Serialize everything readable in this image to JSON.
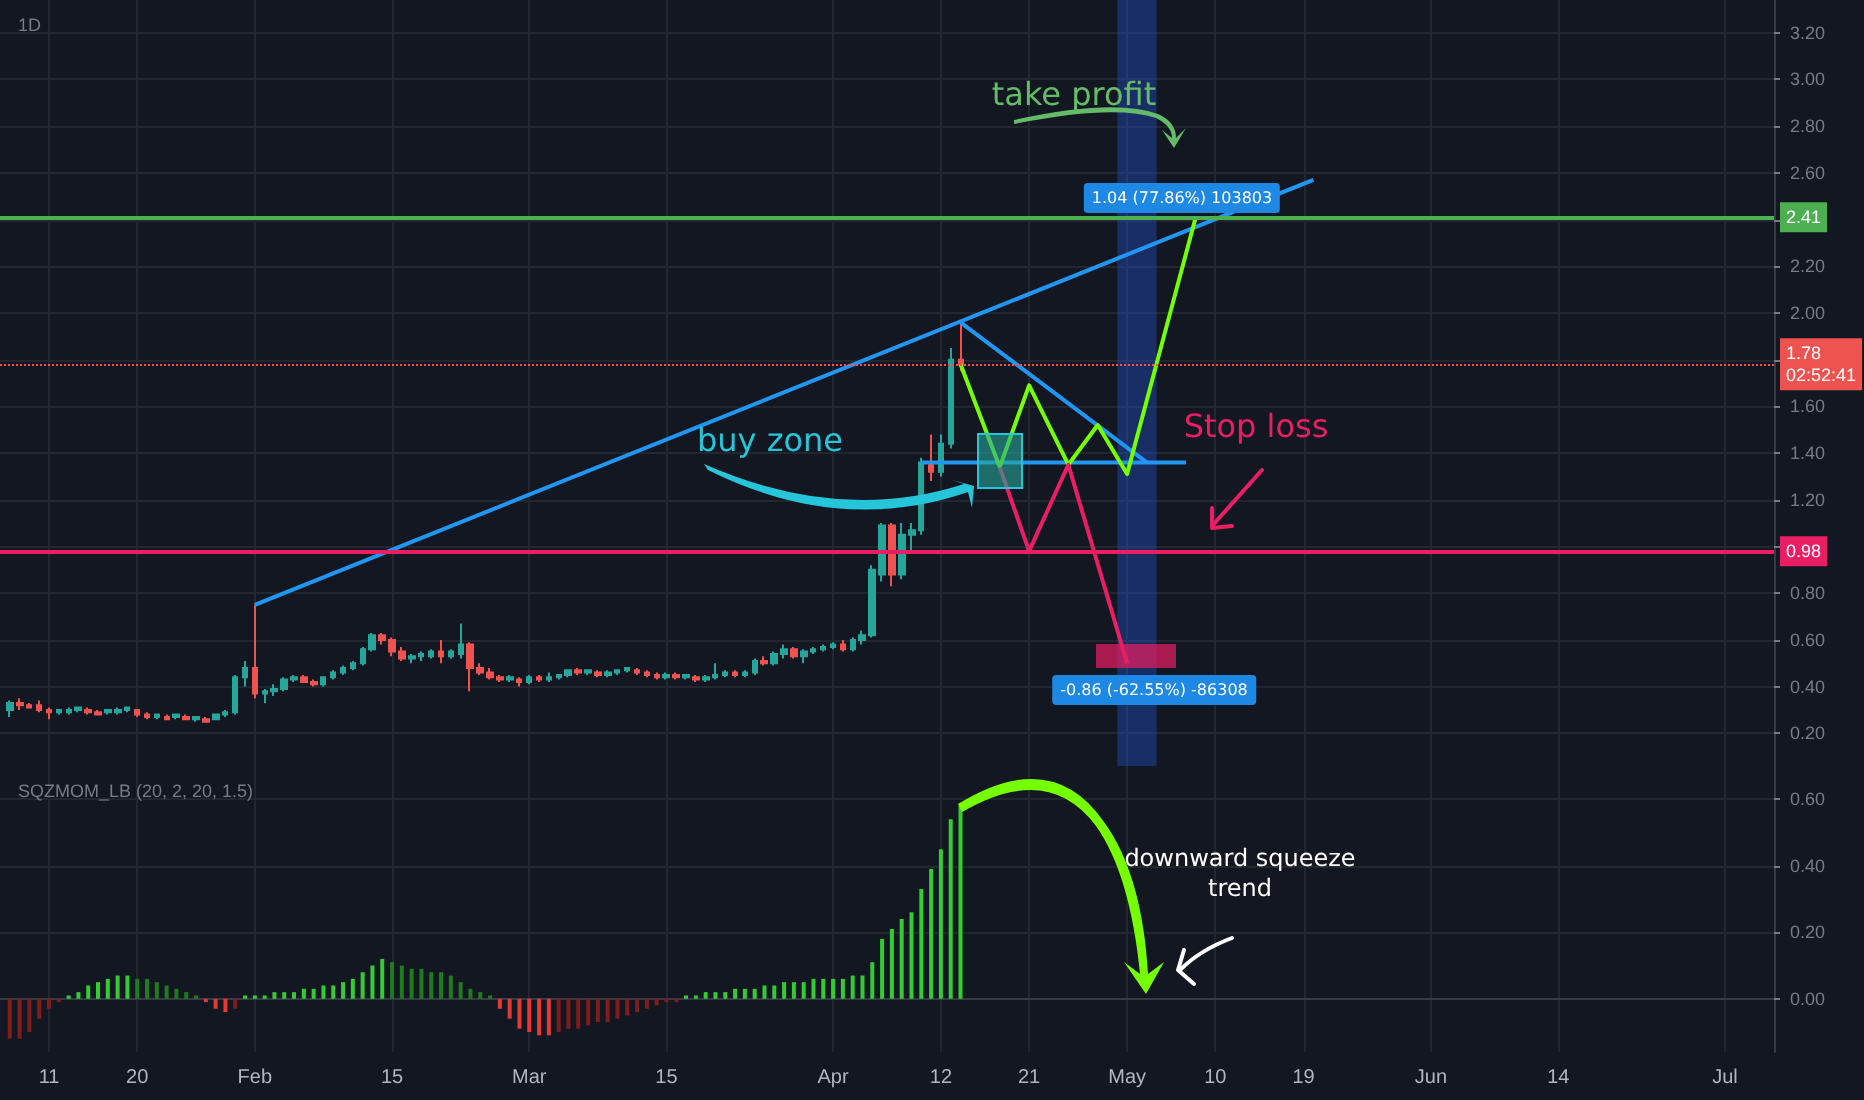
{
  "chart_data": [
    {
      "type": "candlestick",
      "title": "1D",
      "x": [
        "--01-07",
        "--01-08",
        "--01-09",
        "--01-10",
        "--01-11",
        "--01-12",
        "--01-13",
        "--01-14",
        "--01-15",
        "--01-16",
        "--01-17",
        "--01-18",
        "--01-19",
        "--01-20",
        "--01-21",
        "--01-22",
        "--01-23",
        "--01-24",
        "--01-25",
        "--01-26",
        "--01-27",
        "--01-28",
        "--01-29",
        "--01-30",
        "--01-31",
        "--02-01",
        "--02-02",
        "--02-03",
        "--02-04",
        "--02-05",
        "--02-06",
        "--02-07",
        "--02-08",
        "--02-09",
        "--02-10",
        "--02-11",
        "--02-12",
        "--02-13",
        "--02-14",
        "--02-15",
        "--02-16",
        "--02-17",
        "--02-18",
        "--02-19",
        "--02-20",
        "--02-21",
        "--02-22",
        "--02-23",
        "--02-24",
        "--02-25",
        "--02-26",
        "--02-27",
        "--02-28",
        "--03-01",
        "--03-02",
        "--03-03",
        "--03-04",
        "--03-05",
        "--03-06",
        "--03-07",
        "--03-08",
        "--03-09",
        "--03-10",
        "--03-11",
        "--03-12",
        "--03-13",
        "--03-14",
        "--03-15",
        "--03-16",
        "--03-17",
        "--03-18",
        "--03-19",
        "--03-20",
        "--03-21",
        "--03-22",
        "--03-23",
        "--03-24",
        "--03-25",
        "--03-26",
        "--03-27",
        "--03-28",
        "--03-29",
        "--03-30",
        "--03-31",
        "--04-01",
        "--04-02",
        "--04-03",
        "--04-04",
        "--04-05",
        "--04-06",
        "--04-07",
        "--04-08",
        "--04-09",
        "--04-10",
        "--04-11",
        "--04-12",
        "--04-13",
        "--04-14"
      ],
      "ohlc": [
        [
          0.3,
          0.34,
          0.27,
          0.33
        ],
        [
          0.33,
          0.35,
          0.3,
          0.32
        ],
        [
          0.32,
          0.33,
          0.31,
          0.31
        ],
        [
          0.32,
          0.34,
          0.29,
          0.3
        ],
        [
          0.3,
          0.31,
          0.26,
          0.29
        ],
        [
          0.29,
          0.3,
          0.28,
          0.3
        ],
        [
          0.29,
          0.31,
          0.28,
          0.3
        ],
        [
          0.3,
          0.31,
          0.29,
          0.31
        ],
        [
          0.3,
          0.31,
          0.28,
          0.29
        ],
        [
          0.29,
          0.3,
          0.28,
          0.28
        ],
        [
          0.29,
          0.3,
          0.28,
          0.3
        ],
        [
          0.29,
          0.31,
          0.28,
          0.3
        ],
        [
          0.3,
          0.31,
          0.29,
          0.31
        ],
        [
          0.3,
          0.3,
          0.27,
          0.28
        ],
        [
          0.28,
          0.29,
          0.26,
          0.27
        ],
        [
          0.27,
          0.28,
          0.26,
          0.28
        ],
        [
          0.27,
          0.28,
          0.26,
          0.26
        ],
        [
          0.27,
          0.28,
          0.26,
          0.28
        ],
        [
          0.27,
          0.28,
          0.26,
          0.26
        ],
        [
          0.26,
          0.27,
          0.25,
          0.27
        ],
        [
          0.26,
          0.27,
          0.25,
          0.25
        ],
        [
          0.26,
          0.28,
          0.26,
          0.28
        ],
        [
          0.28,
          0.3,
          0.27,
          0.29
        ],
        [
          0.29,
          0.45,
          0.28,
          0.44
        ],
        [
          0.44,
          0.51,
          0.4,
          0.48
        ],
        [
          0.48,
          0.75,
          0.35,
          0.37
        ],
        [
          0.37,
          0.39,
          0.33,
          0.38
        ],
        [
          0.38,
          0.41,
          0.36,
          0.39
        ],
        [
          0.39,
          0.44,
          0.38,
          0.43
        ],
        [
          0.43,
          0.45,
          0.42,
          0.44
        ],
        [
          0.44,
          0.45,
          0.42,
          0.42
        ],
        [
          0.42,
          0.43,
          0.4,
          0.41
        ],
        [
          0.41,
          0.44,
          0.4,
          0.44
        ],
        [
          0.44,
          0.47,
          0.43,
          0.46
        ],
        [
          0.46,
          0.49,
          0.45,
          0.48
        ],
        [
          0.48,
          0.51,
          0.47,
          0.5
        ],
        [
          0.5,
          0.57,
          0.49,
          0.56
        ],
        [
          0.56,
          0.63,
          0.55,
          0.62
        ],
        [
          0.62,
          0.63,
          0.58,
          0.6
        ],
        [
          0.6,
          0.61,
          0.53,
          0.55
        ],
        [
          0.55,
          0.57,
          0.51,
          0.52
        ],
        [
          0.52,
          0.54,
          0.5,
          0.53
        ],
        [
          0.53,
          0.55,
          0.51,
          0.54
        ],
        [
          0.53,
          0.56,
          0.52,
          0.55
        ],
        [
          0.55,
          0.6,
          0.5,
          0.53
        ],
        [
          0.53,
          0.56,
          0.52,
          0.55
        ],
        [
          0.54,
          0.67,
          0.52,
          0.58
        ],
        [
          0.58,
          0.59,
          0.38,
          0.48
        ],
        [
          0.48,
          0.5,
          0.45,
          0.46
        ],
        [
          0.46,
          0.48,
          0.43,
          0.44
        ],
        [
          0.44,
          0.45,
          0.42,
          0.43
        ],
        [
          0.43,
          0.45,
          0.42,
          0.44
        ],
        [
          0.43,
          0.44,
          0.4,
          0.42
        ],
        [
          0.42,
          0.45,
          0.41,
          0.44
        ],
        [
          0.44,
          0.45,
          0.42,
          0.43
        ],
        [
          0.43,
          0.46,
          0.42,
          0.44
        ],
        [
          0.44,
          0.45,
          0.43,
          0.45
        ],
        [
          0.45,
          0.47,
          0.44,
          0.47
        ],
        [
          0.47,
          0.48,
          0.45,
          0.46
        ],
        [
          0.46,
          0.47,
          0.45,
          0.47
        ],
        [
          0.46,
          0.47,
          0.44,
          0.45
        ],
        [
          0.45,
          0.47,
          0.44,
          0.46
        ],
        [
          0.46,
          0.47,
          0.45,
          0.47
        ],
        [
          0.47,
          0.48,
          0.46,
          0.48
        ],
        [
          0.47,
          0.48,
          0.45,
          0.46
        ],
        [
          0.46,
          0.47,
          0.44,
          0.45
        ],
        [
          0.45,
          0.46,
          0.43,
          0.44
        ],
        [
          0.44,
          0.46,
          0.43,
          0.45
        ],
        [
          0.45,
          0.46,
          0.43,
          0.44
        ],
        [
          0.44,
          0.45,
          0.43,
          0.45
        ],
        [
          0.44,
          0.45,
          0.42,
          0.43
        ],
        [
          0.43,
          0.45,
          0.42,
          0.44
        ],
        [
          0.44,
          0.5,
          0.43,
          0.45
        ],
        [
          0.45,
          0.47,
          0.44,
          0.46
        ],
        [
          0.46,
          0.47,
          0.44,
          0.45
        ],
        [
          0.45,
          0.47,
          0.44,
          0.46
        ],
        [
          0.46,
          0.52,
          0.45,
          0.51
        ],
        [
          0.51,
          0.53,
          0.49,
          0.5
        ],
        [
          0.5,
          0.55,
          0.49,
          0.54
        ],
        [
          0.54,
          0.58,
          0.52,
          0.56
        ],
        [
          0.56,
          0.57,
          0.52,
          0.53
        ],
        [
          0.53,
          0.56,
          0.5,
          0.55
        ],
        [
          0.55,
          0.57,
          0.54,
          0.56
        ],
        [
          0.56,
          0.58,
          0.55,
          0.57
        ],
        [
          0.57,
          0.59,
          0.56,
          0.58
        ],
        [
          0.58,
          0.6,
          0.55,
          0.56
        ],
        [
          0.56,
          0.61,
          0.55,
          0.6
        ],
        [
          0.6,
          0.64,
          0.58,
          0.62
        ],
        [
          0.62,
          0.92,
          0.61,
          0.9
        ],
        [
          0.88,
          1.1,
          0.85,
          1.09
        ],
        [
          1.09,
          1.1,
          0.83,
          0.88
        ],
        [
          0.88,
          1.1,
          0.86,
          1.05
        ],
        [
          1.05,
          1.1,
          0.98,
          1.07
        ],
        [
          1.07,
          1.38,
          1.05,
          1.36
        ],
        [
          1.36,
          1.48,
          1.28,
          1.32
        ],
        [
          1.32,
          1.48,
          1.3,
          1.44
        ],
        [
          1.44,
          1.85,
          1.42,
          1.8
        ],
        [
          1.8,
          1.96,
          1.75,
          1.78
        ]
      ],
      "colors": [
        "#26a69a",
        "#ef5350",
        "#ef5350",
        "#ef5350",
        "#ef5350",
        "#26a69a",
        "#26a69a",
        "#26a69a",
        "#ef5350",
        "#ef5350",
        "#26a69a",
        "#26a69a",
        "#26a69a",
        "#ef5350",
        "#ef5350",
        "#26a69a",
        "#ef5350",
        "#26a69a",
        "#ef5350",
        "#26a69a",
        "#ef5350",
        "#26a69a",
        "#26a69a",
        "#26a69a",
        "#26a69a",
        "#ef5350",
        "#26a69a",
        "#26a69a",
        "#26a69a",
        "#26a69a",
        "#ef5350",
        "#ef5350",
        "#26a69a",
        "#26a69a",
        "#26a69a",
        "#26a69a",
        "#26a69a",
        "#26a69a",
        "#ef5350",
        "#ef5350",
        "#ef5350",
        "#26a69a",
        "#26a69a",
        "#26a69a",
        "#ef5350",
        "#26a69a",
        "#26a69a",
        "#ef5350",
        "#ef5350",
        "#ef5350",
        "#ef5350",
        "#26a69a",
        "#ef5350",
        "#26a69a",
        "#ef5350",
        "#26a69a",
        "#26a69a",
        "#26a69a",
        "#ef5350",
        "#26a69a",
        "#ef5350",
        "#26a69a",
        "#26a69a",
        "#26a69a",
        "#ef5350",
        "#ef5350",
        "#ef5350",
        "#26a69a",
        "#ef5350",
        "#26a69a",
        "#ef5350",
        "#26a69a",
        "#26a69a",
        "#26a69a",
        "#ef5350",
        "#26a69a",
        "#26a69a",
        "#ef5350",
        "#26a69a",
        "#26a69a",
        "#ef5350",
        "#26a69a",
        "#26a69a",
        "#26a69a",
        "#26a69a",
        "#ef5350",
        "#26a69a",
        "#26a69a",
        "#26a69a",
        "#26a69a",
        "#ef5350",
        "#26a69a",
        "#26a69a",
        "#26a69a",
        "#ef5350",
        "#26a69a",
        "#26a69a",
        "#ef5350"
      ],
      "series": [
        {
          "type": "line",
          "x": [
            "--02-01",
            "--05-20"
          ],
          "values": [
            0.75,
            2.57
          ],
          "color": "#2196f3"
        },
        {
          "type": "line",
          "x": [
            "--04-14",
            "--05-03"
          ],
          "values": [
            1.96,
            1.36
          ],
          "color": "#2196f3"
        },
        {
          "type": "line",
          "x": [
            "--04-10",
            "--05-07"
          ],
          "values": [
            1.36,
            1.36
          ],
          "color": "#2196f3"
        },
        {
          "type": "line",
          "x": [
            "--04-14",
            "--04-18",
            "--04-21",
            "--04-25",
            "--04-28",
            "--05-01",
            "--05-08"
          ],
          "values": [
            1.78,
            1.34,
            1.69,
            1.35,
            1.52,
            1.31,
            2.41
          ],
          "color": "#76ff03"
        },
        {
          "type": "line",
          "x": [
            "--04-18",
            "--04-21",
            "--04-25",
            "--05-01"
          ],
          "values": [
            1.34,
            0.98,
            1.35,
            0.5
          ],
          "color": "#e91e63"
        }
      ],
      "marker": "none",
      "xlim": [
        "--01-06",
        "--07-06"
      ],
      "xticks": [
        {
          "value": "--01-11",
          "label": "11"
        },
        {
          "value": "--01-20",
          "label": "20"
        },
        {
          "value": "--02-01",
          "label": "Feb"
        },
        {
          "value": "--02-15",
          "label": "15"
        },
        {
          "value": "--03-01",
          "label": "Mar"
        },
        {
          "value": "--03-15",
          "label": "15"
        },
        {
          "value": "--04-01",
          "label": "Apr"
        },
        {
          "value": "--04-12",
          "label": "12"
        },
        {
          "value": "--04-21",
          "label": "21"
        },
        {
          "value": "--05-01",
          "label": "May"
        },
        {
          "value": "--05-10",
          "label": "10"
        },
        {
          "value": "--05-19",
          "label": "19"
        },
        {
          "value": "--06-01",
          "label": "Jun"
        },
        {
          "value": "--06-14",
          "label": "14"
        },
        {
          "value": "--07-01",
          "label": "Jul"
        }
      ],
      "ylim": [
        0.06,
        3.34
      ],
      "yticks": [
        {
          "value": 0.2,
          "label": "0.20"
        },
        {
          "value": 0.4,
          "label": "0.40"
        },
        {
          "value": 0.6,
          "label": "0.60"
        },
        {
          "value": 0.8,
          "label": "0.80"
        },
        {
          "value": 1.0,
          "label": null
        },
        {
          "value": 1.2,
          "label": "1.20"
        },
        {
          "value": 1.4,
          "label": "1.40"
        },
        {
          "value": 1.6,
          "label": "1.60"
        },
        {
          "value": 1.8,
          "label": null
        },
        {
          "value": 2.0,
          "label": "2.00"
        },
        {
          "value": 2.2,
          "label": "2.20"
        },
        {
          "value": 2.4,
          "label": null
        },
        {
          "value": 2.6,
          "label": "2.60"
        },
        {
          "value": 2.8,
          "label": "2.80"
        },
        {
          "value": 3.0,
          "label": "3.00"
        },
        {
          "value": 3.2,
          "label": "3.20"
        }
      ],
      "tick_labels": "y",
      "grid": true,
      "ref_lines": [
        {
          "axis": "y",
          "value": 2.41,
          "label": "2.41",
          "color": "#4caf50",
          "line_style": "solid"
        },
        {
          "axis": "y",
          "value": 0.98,
          "label": "0.98",
          "color": "#e91e63",
          "line_style": "solid"
        },
        {
          "axis": "y",
          "value": 1.78,
          "label": "1.78\n02:52:41",
          "color": "#ef5350",
          "line_style": "dotted"
        }
      ],
      "bands": [
        {
          "axis": "x",
          "from": "--04-30",
          "to": "--05-04",
          "color": "#2962ff"
        }
      ],
      "annotations": [
        "take profit",
        "buy zone",
        "Stop loss",
        "1.04 (77.86%) 103803",
        "-0.86 (-62.55%) -86308"
      ]
    },
    {
      "type": "bar",
      "title": "SQZMOM_LB (20, 2, 20, 1.5)",
      "x": [
        "--01-07",
        "--01-08",
        "--01-09",
        "--01-10",
        "--01-11",
        "--01-12",
        "--01-13",
        "--01-14",
        "--01-15",
        "--01-16",
        "--01-17",
        "--01-18",
        "--01-19",
        "--01-20",
        "--01-21",
        "--01-22",
        "--01-23",
        "--01-24",
        "--01-25",
        "--01-26",
        "--01-27",
        "--01-28",
        "--01-29",
        "--01-30",
        "--01-31",
        "--02-01",
        "--02-02",
        "--02-03",
        "--02-04",
        "--02-05",
        "--02-06",
        "--02-07",
        "--02-08",
        "--02-09",
        "--02-10",
        "--02-11",
        "--02-12",
        "--02-13",
        "--02-14",
        "--02-15",
        "--02-16",
        "--02-17",
        "--02-18",
        "--02-19",
        "--02-20",
        "--02-21",
        "--02-22",
        "--02-23",
        "--02-24",
        "--02-25",
        "--02-26",
        "--02-27",
        "--02-28",
        "--03-01",
        "--03-02",
        "--03-03",
        "--03-04",
        "--03-05",
        "--03-06",
        "--03-07",
        "--03-08",
        "--03-09",
        "--03-10",
        "--03-11",
        "--03-12",
        "--03-13",
        "--03-14",
        "--03-15",
        "--03-16",
        "--03-17",
        "--03-18",
        "--03-19",
        "--03-20",
        "--03-21",
        "--03-22",
        "--03-23",
        "--03-24",
        "--03-25",
        "--03-26",
        "--03-27",
        "--03-28",
        "--03-29",
        "--03-30",
        "--03-31",
        "--04-01",
        "--04-02",
        "--04-03",
        "--04-04",
        "--04-05",
        "--04-06",
        "--04-07",
        "--04-08",
        "--04-09",
        "--04-10",
        "--04-11",
        "--04-12",
        "--04-13",
        "--04-14"
      ],
      "values": [
        -0.12,
        -0.12,
        -0.1,
        -0.06,
        -0.03,
        -0.01,
        0.01,
        0.02,
        0.04,
        0.05,
        0.06,
        0.07,
        0.07,
        0.06,
        0.06,
        0.05,
        0.04,
        0.03,
        0.02,
        0.01,
        -0.01,
        -0.03,
        -0.04,
        -0.03,
        0.01,
        0.01,
        0.01,
        0.02,
        0.02,
        0.02,
        0.03,
        0.03,
        0.04,
        0.04,
        0.05,
        0.06,
        0.08,
        0.1,
        0.12,
        0.11,
        0.1,
        0.09,
        0.09,
        0.08,
        0.08,
        0.07,
        0.05,
        0.03,
        0.02,
        0.01,
        -0.03,
        -0.06,
        -0.09,
        -0.1,
        -0.11,
        -0.11,
        -0.1,
        -0.09,
        -0.09,
        -0.08,
        -0.07,
        -0.07,
        -0.06,
        -0.05,
        -0.04,
        -0.03,
        -0.02,
        -0.01,
        -0.01,
        0.01,
        0.01,
        0.02,
        0.02,
        0.02,
        0.03,
        0.03,
        0.03,
        0.04,
        0.04,
        0.05,
        0.05,
        0.05,
        0.06,
        0.06,
        0.06,
        0.06,
        0.07,
        0.07,
        0.11,
        0.18,
        0.21,
        0.24,
        0.26,
        0.33,
        0.39,
        0.45,
        0.54,
        0.58
      ],
      "colors": [
        "#7f1d1d",
        "#7f1d1d",
        "#7f1d1d",
        "#7f1d1d",
        "#7f1d1d",
        "#7f1d1d",
        "#33cc33",
        "#33cc33",
        "#33cc33",
        "#33cc33",
        "#33cc33",
        "#33cc33",
        "#33cc33",
        "#1e7b1e",
        "#1e7b1e",
        "#1e7b1e",
        "#1e7b1e",
        "#1e7b1e",
        "#1e7b1e",
        "#1e7b1e",
        "#e53935",
        "#e53935",
        "#e53935",
        "#7f1d1d",
        "#33cc33",
        "#33cc33",
        "#33cc33",
        "#33cc33",
        "#33cc33",
        "#33cc33",
        "#33cc33",
        "#33cc33",
        "#33cc33",
        "#33cc33",
        "#33cc33",
        "#33cc33",
        "#33cc33",
        "#33cc33",
        "#33cc33",
        "#1e7b1e",
        "#1e7b1e",
        "#1e7b1e",
        "#1e7b1e",
        "#1e7b1e",
        "#1e7b1e",
        "#1e7b1e",
        "#1e7b1e",
        "#1e7b1e",
        "#1e7b1e",
        "#1e7b1e",
        "#e53935",
        "#e53935",
        "#e53935",
        "#e53935",
        "#e53935",
        "#e53935",
        "#7f1d1d",
        "#7f1d1d",
        "#7f1d1d",
        "#7f1d1d",
        "#7f1d1d",
        "#7f1d1d",
        "#7f1d1d",
        "#7f1d1d",
        "#7f1d1d",
        "#7f1d1d",
        "#7f1d1d",
        "#7f1d1d",
        "#7f1d1d",
        "#33cc33",
        "#33cc33",
        "#33cc33",
        "#33cc33",
        "#33cc33",
        "#33cc33",
        "#33cc33",
        "#33cc33",
        "#33cc33",
        "#33cc33",
        "#33cc33",
        "#33cc33",
        "#33cc33",
        "#33cc33",
        "#33cc33",
        "#33cc33",
        "#33cc33",
        "#33cc33",
        "#33cc33",
        "#33cc33",
        "#33cc33",
        "#33cc33",
        "#33cc33",
        "#33cc33",
        "#33cc33",
        "#33cc33",
        "#33cc33",
        "#33cc33",
        "#33cc33"
      ],
      "xlim": [
        "--01-06",
        "--07-06"
      ],
      "xticks": [
        {
          "value": "--01-11",
          "label": "11"
        },
        {
          "value": "--01-20",
          "label": "20"
        },
        {
          "value": "--02-01",
          "label": "Feb"
        },
        {
          "value": "--02-15",
          "label": "15"
        },
        {
          "value": "--03-01",
          "label": "Mar"
        },
        {
          "value": "--03-15",
          "label": "15"
        },
        {
          "value": "--04-01",
          "label": "Apr"
        },
        {
          "value": "--04-12",
          "label": "12"
        },
        {
          "value": "--04-21",
          "label": "21"
        },
        {
          "value": "--05-01",
          "label": "May"
        },
        {
          "value": "--05-10",
          "label": "10"
        },
        {
          "value": "--05-19",
          "label": "19"
        },
        {
          "value": "--06-01",
          "label": "Jun"
        },
        {
          "value": "--06-14",
          "label": "14"
        },
        {
          "value": "--07-01",
          "label": "Jul"
        }
      ],
      "ylim": [
        -0.16,
        0.7
      ],
      "yticks": [
        {
          "value": 0,
          "label": "0.00"
        },
        {
          "value": 0.2,
          "label": "0.20"
        },
        {
          "value": 0.4,
          "label": "0.40"
        },
        {
          "value": 0.6,
          "label": "0.60"
        }
      ],
      "grid": true,
      "annotations": [
        "downward squeeze trend"
      ]
    }
  ]
}
